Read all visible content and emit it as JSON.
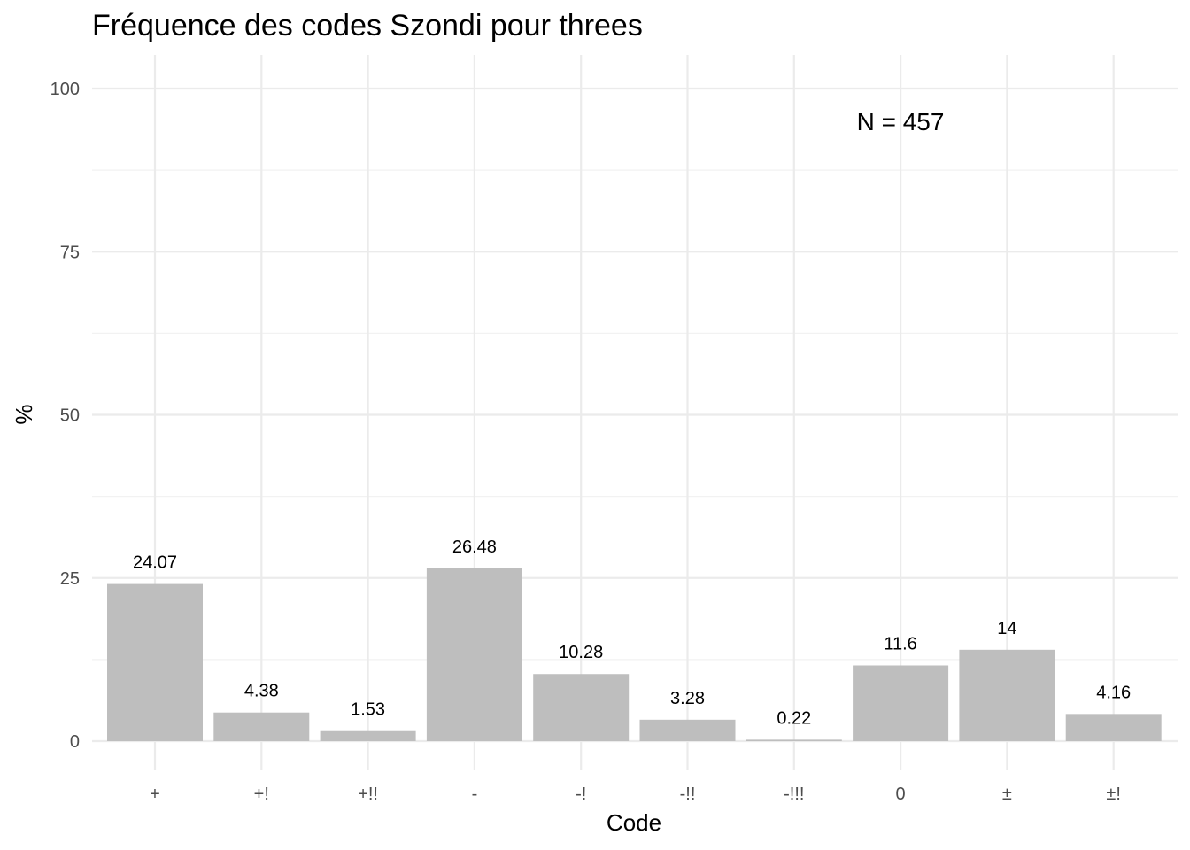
{
  "chart_data": {
    "type": "bar",
    "title": "Fréquence des codes Szondi pour threes",
    "xlabel": "Code",
    "ylabel": "%",
    "categories": [
      "+",
      "+!",
      "+!!",
      "-",
      "-!",
      "-!!",
      "-!!!",
      "0",
      "±",
      "±!"
    ],
    "values": [
      24.07,
      4.38,
      1.53,
      26.48,
      10.28,
      3.28,
      0.22,
      11.6,
      14,
      4.16
    ],
    "data_labels": [
      "24.07",
      "4.38",
      "1.53",
      "26.48",
      "10.28",
      "3.28",
      "0.22",
      "11.6",
      "14",
      "4.16"
    ],
    "ylim": [
      0,
      100
    ],
    "yticks": [
      0,
      25,
      50,
      75,
      100
    ],
    "annotation": "N = 457",
    "grid": true,
    "legend": "none",
    "bar_color": "#bebebe"
  }
}
